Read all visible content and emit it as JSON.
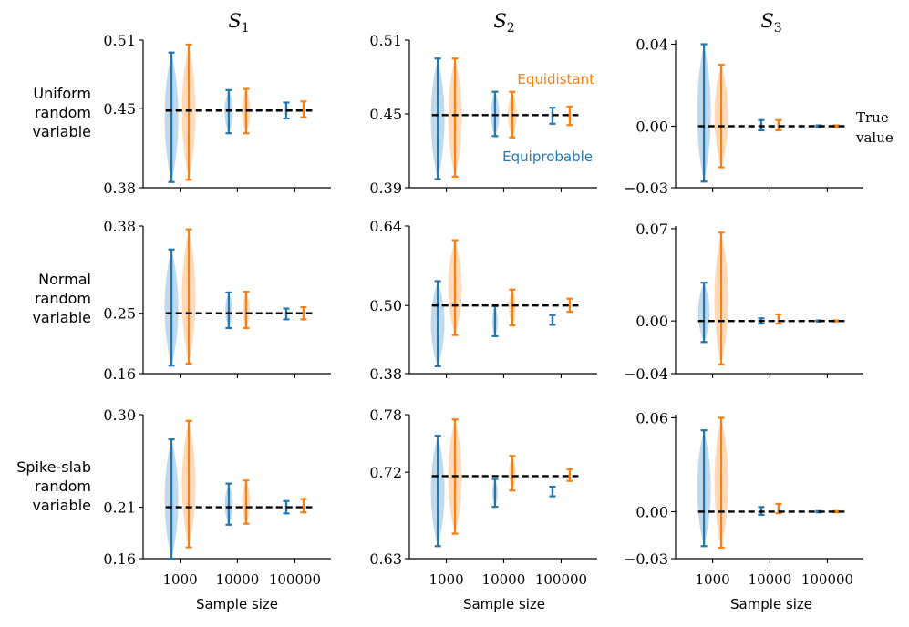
{
  "colors": {
    "equiprobable": "#1f77b4",
    "equidistant": "#ff7f0e",
    "true_value": "#000000"
  },
  "column_titles": [
    {
      "base": "S",
      "sub": "1"
    },
    {
      "base": "S",
      "sub": "2"
    },
    {
      "base": "S",
      "sub": "3"
    }
  ],
  "row_labels": [
    [
      "Uniform",
      "random",
      "variable"
    ],
    [
      "Normal",
      "random",
      "variable"
    ],
    [
      "Spike-slab",
      "random",
      "variable"
    ]
  ],
  "xlabel": "Sample size",
  "annotations": {
    "equidistant": "Equidistant",
    "equiprobable": "Equiprobable",
    "true_value": [
      "True",
      "value"
    ]
  },
  "chart_data": {
    "type": "violin",
    "categories": [
      "1000",
      "10000",
      "100000"
    ],
    "series_names": [
      "Equiprobable",
      "Equidistant"
    ],
    "panels": [
      {
        "row": 0,
        "col": 0,
        "ylim": [
          0.38,
          0.51
        ],
        "yticks": [
          "0.51",
          "0.45",
          "0.38"
        ],
        "true_value": 0.448,
        "equiprobable": [
          [
            0.385,
            0.499
          ],
          [
            0.428,
            0.466
          ],
          [
            0.441,
            0.455
          ]
        ],
        "equidistant": [
          [
            0.387,
            0.506
          ],
          [
            0.428,
            0.467
          ],
          [
            0.442,
            0.456
          ]
        ]
      },
      {
        "row": 0,
        "col": 1,
        "ylim": [
          0.39,
          0.51
        ],
        "yticks": [
          "0.51",
          "0.45",
          "0.39"
        ],
        "true_value": 0.449,
        "equiprobable": [
          [
            0.397,
            0.495
          ],
          [
            0.432,
            0.468
          ],
          [
            0.442,
            0.455
          ]
        ],
        "equidistant": [
          [
            0.399,
            0.495
          ],
          [
            0.431,
            0.468
          ],
          [
            0.441,
            0.456
          ]
        ]
      },
      {
        "row": 0,
        "col": 2,
        "ylim": [
          -0.03,
          0.042
        ],
        "yticks": [
          "0.04",
          "0.00",
          "−0.03"
        ],
        "true_value": 0.0,
        "equiprobable": [
          [
            -0.027,
            0.04
          ],
          [
            -0.002,
            0.003
          ],
          [
            -0.0004,
            0.0004
          ]
        ],
        "equidistant": [
          [
            -0.02,
            0.03
          ],
          [
            -0.002,
            0.003
          ],
          [
            -0.0004,
            0.0004
          ]
        ]
      },
      {
        "row": 1,
        "col": 0,
        "ylim": [
          0.16,
          0.38
        ],
        "yticks": [
          "0.38",
          "0.25",
          "0.16"
        ],
        "true_value": 0.25,
        "equiprobable": [
          [
            0.172,
            0.345
          ],
          [
            0.228,
            0.281
          ],
          [
            0.241,
            0.257
          ]
        ],
        "equidistant": [
          [
            0.175,
            0.375
          ],
          [
            0.228,
            0.282
          ],
          [
            0.241,
            0.259
          ]
        ]
      },
      {
        "row": 1,
        "col": 1,
        "ylim": [
          0.38,
          0.64
        ],
        "yticks": [
          "0.64",
          "0.50",
          "0.38"
        ],
        "true_value": 0.5,
        "equiprobable": [
          [
            0.393,
            0.543
          ],
          [
            0.446,
            0.499
          ],
          [
            0.466,
            0.483
          ]
        ],
        "equidistant": [
          [
            0.448,
            0.615
          ],
          [
            0.465,
            0.528
          ],
          [
            0.489,
            0.512
          ]
        ]
      },
      {
        "row": 1,
        "col": 2,
        "ylim": [
          -0.04,
          0.072
        ],
        "yticks": [
          "0.07",
          "0.00",
          "−0.04"
        ],
        "true_value": 0.0,
        "equiprobable": [
          [
            -0.016,
            0.029
          ],
          [
            -0.002,
            0.002
          ],
          [
            -0.0004,
            0.0004
          ]
        ],
        "equidistant": [
          [
            -0.033,
            0.067
          ],
          [
            -0.002,
            0.005
          ],
          [
            -0.0004,
            0.0004
          ]
        ]
      },
      {
        "row": 2,
        "col": 0,
        "ylim": [
          0.16,
          0.3
        ],
        "yticks": [
          "0.30",
          "0.21",
          "0.16"
        ],
        "true_value": 0.21,
        "equiprobable": [
          [
            0.16,
            0.276
          ],
          [
            0.193,
            0.233
          ],
          [
            0.204,
            0.216
          ]
        ],
        "equidistant": [
          [
            0.171,
            0.294
          ],
          [
            0.194,
            0.236
          ],
          [
            0.205,
            0.218
          ]
        ]
      },
      {
        "row": 2,
        "col": 1,
        "ylim": [
          0.63,
          0.78
        ],
        "yticks": [
          "0.78",
          "0.72",
          "0.63"
        ],
        "true_value": 0.716,
        "equiprobable": [
          [
            0.643,
            0.758
          ],
          [
            0.684,
            0.713
          ],
          [
            0.695,
            0.705
          ]
        ],
        "equidistant": [
          [
            0.656,
            0.775
          ],
          [
            0.701,
            0.737
          ],
          [
            0.711,
            0.723
          ]
        ]
      },
      {
        "row": 2,
        "col": 2,
        "ylim": [
          -0.03,
          0.062
        ],
        "yticks": [
          "0.06",
          "0.00",
          "−0.03"
        ],
        "true_value": 0.0,
        "equiprobable": [
          [
            -0.022,
            0.052
          ],
          [
            -0.002,
            0.003
          ],
          [
            -0.0004,
            0.0004
          ]
        ],
        "equidistant": [
          [
            -0.023,
            0.06
          ],
          [
            -0.001,
            0.005
          ],
          [
            -0.0004,
            0.0004
          ]
        ]
      }
    ]
  }
}
